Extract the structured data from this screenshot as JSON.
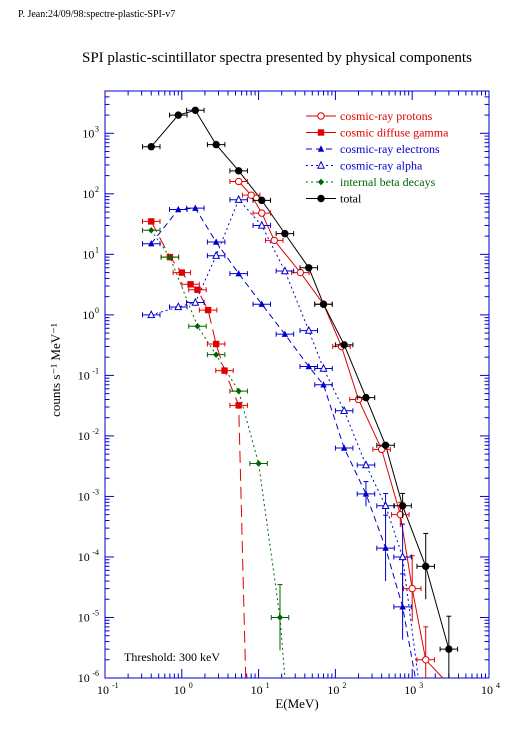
{
  "header_note": "P. Jean:24/09/98:spectre-plastic-SPI-v7",
  "chart_data": {
    "type": "scatter",
    "title": "SPI plastic-scintillator spectra presented by physical components",
    "xlabel": "E(MeV)",
    "ylabel": "counts s⁻¹ MeV⁻¹",
    "xscale": "log",
    "yscale": "log",
    "xlim": [
      0.1,
      10000
    ],
    "ylim": [
      1e-06,
      5000
    ],
    "x_ticks": [
      {
        "mant": "10",
        "exp": "-1"
      },
      {
        "mant": "10",
        "exp": "0"
      },
      {
        "mant": "10",
        "exp": "1"
      },
      {
        "mant": "10",
        "exp": "2"
      },
      {
        "mant": "10",
        "exp": "3"
      },
      {
        "mant": "10",
        "exp": "4"
      }
    ],
    "y_ticks": [
      {
        "mant": "10",
        "exp": "-6"
      },
      {
        "mant": "10",
        "exp": "-5"
      },
      {
        "mant": "10",
        "exp": "-4"
      },
      {
        "mant": "10",
        "exp": "-3"
      },
      {
        "mant": "10",
        "exp": "-2"
      },
      {
        "mant": "10",
        "exp": "-1"
      },
      {
        "mant": "10",
        "exp": "0"
      },
      {
        "mant": "10",
        "exp": "1"
      },
      {
        "mant": "10",
        "exp": "2"
      },
      {
        "mant": "10",
        "exp": "3"
      }
    ],
    "legend_position": "top-right",
    "annotation": "Threshold: 300 keV",
    "series": [
      {
        "name": "cosmic-ray protons",
        "color": "#e00000",
        "marker": "open-circle",
        "dash": "none",
        "x": [
          5.5,
          8,
          11,
          16,
          35,
          70,
          120,
          200,
          400,
          700,
          1000,
          1500,
          2500
        ],
        "y": [
          160,
          95,
          48,
          17,
          5,
          1.5,
          0.3,
          0.04,
          0.006,
          0.0005,
          3e-05,
          2e-06,
          1e-06
        ]
      },
      {
        "name": "cosmic diffuse gamma",
        "color": "#e00000",
        "marker": "filled-square",
        "dash": "long",
        "x": [
          0.4,
          0.7,
          1.0,
          1.3,
          1.6,
          2.2,
          2.8,
          3.6,
          5.5,
          6.8
        ],
        "y": [
          35,
          9,
          5,
          3.2,
          2.6,
          1.2,
          0.33,
          0.12,
          0.032,
          1e-06
        ]
      },
      {
        "name": "cosmic-ray electrons",
        "color": "#0000cc",
        "marker": "filled-triangle",
        "dash": "dashed",
        "x": [
          0.4,
          0.9,
          1.5,
          2.8,
          5.5,
          11,
          22,
          45,
          70,
          130,
          250,
          450,
          750,
          1100
        ],
        "y": [
          15,
          55,
          58,
          16,
          4.8,
          1.5,
          0.48,
          0.14,
          0.07,
          0.0063,
          0.0011,
          0.00014,
          1.5e-05,
          1e-06
        ]
      },
      {
        "name": "cosmic-ray alpha",
        "color": "#0000cc",
        "marker": "open-triangle",
        "dash": "dotted",
        "x": [
          0.4,
          0.9,
          1.5,
          2.8,
          5.5,
          11,
          22,
          45,
          70,
          130,
          250,
          450,
          750,
          1200
        ],
        "y": [
          1,
          1.35,
          1.6,
          9.5,
          80,
          30,
          5.3,
          0.55,
          0.13,
          0.026,
          0.0033,
          0.0007,
          0.0001,
          1e-06
        ]
      },
      {
        "name": "internal beta decays",
        "color": "#006600",
        "marker": "filled-diamond",
        "dash": "dotted",
        "x": [
          0.4,
          0.7,
          1.6,
          2.8,
          5.5,
          10,
          19,
          22
        ],
        "y": [
          25,
          9,
          0.65,
          0.22,
          0.055,
          0.0035,
          1e-05,
          1e-06
        ]
      },
      {
        "name": "total",
        "color": "#000000",
        "marker": "filled-circle",
        "dash": "none",
        "x": [
          0.4,
          0.9,
          1.5,
          2.8,
          5.5,
          11,
          22,
          45,
          70,
          130,
          250,
          450,
          750,
          1500,
          3000
        ],
        "y": [
          600,
          2000,
          2400,
          650,
          240,
          78,
          22,
          6,
          1.5,
          0.32,
          0.043,
          0.007,
          0.0007,
          7e-05,
          3e-06
        ]
      }
    ]
  }
}
